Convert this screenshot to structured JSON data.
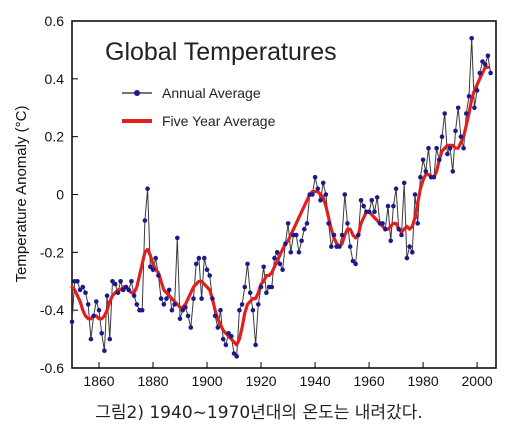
{
  "chart_data": {
    "type": "line",
    "title": "Global Temperatures",
    "ylabel": "Temperature Anomaly (°C)",
    "xlabel": "",
    "xlim": [
      1850,
      2007
    ],
    "ylim": [
      -0.6,
      0.6
    ],
    "x_ticks": [
      1860,
      1880,
      1900,
      1920,
      1940,
      1960,
      1980,
      2000
    ],
    "y_ticks": [
      "0.6",
      "0.4",
      "0.2",
      "0",
      "-0.2",
      "-0.4",
      "-0.6"
    ],
    "legend_position": "top-left",
    "grid": false,
    "series": [
      {
        "name": "Annual Average",
        "color": "#1a1a8c",
        "x_start": 1850,
        "values": [
          -0.44,
          -0.3,
          -0.3,
          -0.33,
          -0.32,
          -0.34,
          -0.38,
          -0.5,
          -0.42,
          -0.37,
          -0.4,
          -0.48,
          -0.54,
          -0.35,
          -0.5,
          -0.3,
          -0.31,
          -0.34,
          -0.3,
          -0.33,
          -0.32,
          -0.33,
          -0.3,
          -0.35,
          -0.38,
          -0.4,
          -0.4,
          -0.09,
          0.02,
          -0.25,
          -0.26,
          -0.22,
          -0.28,
          -0.36,
          -0.38,
          -0.36,
          -0.33,
          -0.4,
          -0.38,
          -0.15,
          -0.43,
          -0.4,
          -0.39,
          -0.42,
          -0.46,
          -0.36,
          -0.24,
          -0.22,
          -0.36,
          -0.22,
          -0.26,
          -0.28,
          -0.36,
          -0.42,
          -0.46,
          -0.4,
          -0.5,
          -0.52,
          -0.48,
          -0.49,
          -0.55,
          -0.56,
          -0.4,
          -0.38,
          -0.32,
          -0.24,
          -0.34,
          -0.4,
          -0.52,
          -0.38,
          -0.32,
          -0.25,
          -0.34,
          -0.32,
          -0.32,
          -0.22,
          -0.2,
          -0.24,
          -0.26,
          -0.17,
          -0.1,
          -0.2,
          -0.14,
          -0.14,
          -0.2,
          -0.16,
          -0.12,
          -0.1,
          0.0,
          0.0,
          0.06,
          0.02,
          -0.02,
          0.04,
          0.0,
          -0.1,
          -0.18,
          -0.14,
          -0.18,
          -0.18,
          -0.14,
          0.0,
          -0.1,
          -0.18,
          -0.23,
          -0.24,
          -0.14,
          -0.02,
          -0.04,
          -0.06,
          -0.06,
          -0.02,
          -0.06,
          -0.01,
          -0.1,
          -0.1,
          -0.12,
          -0.04,
          -0.16,
          -0.04,
          0.02,
          -0.12,
          -0.14,
          0.04,
          -0.22,
          -0.18,
          -0.2,
          0.0,
          -0.1,
          0.06,
          0.12,
          0.08,
          0.16,
          0.06,
          0.06,
          0.16,
          0.12,
          0.2,
          0.28,
          0.14,
          0.16,
          0.08,
          0.22,
          0.3,
          0.2,
          0.16,
          0.28,
          0.34,
          0.54,
          0.3,
          0.36,
          0.42,
          0.46,
          0.45,
          0.48,
          0.42
        ]
      },
      {
        "name": "Five Year Average",
        "color": "#e0201f",
        "x_start": 1850,
        "values": [
          -0.32,
          -0.33,
          -0.35,
          -0.37,
          -0.4,
          -0.42,
          -0.43,
          -0.43,
          -0.42,
          -0.42,
          -0.43,
          -0.43,
          -0.42,
          -0.4,
          -0.37,
          -0.35,
          -0.34,
          -0.33,
          -0.33,
          -0.32,
          -0.32,
          -0.33,
          -0.34,
          -0.34,
          -0.32,
          -0.28,
          -0.24,
          -0.2,
          -0.19,
          -0.21,
          -0.24,
          -0.26,
          -0.27,
          -0.3,
          -0.33,
          -0.34,
          -0.35,
          -0.36,
          -0.37,
          -0.38,
          -0.39,
          -0.39,
          -0.38,
          -0.36,
          -0.34,
          -0.32,
          -0.31,
          -0.3,
          -0.3,
          -0.31,
          -0.32,
          -0.33,
          -0.36,
          -0.4,
          -0.43,
          -0.45,
          -0.47,
          -0.48,
          -0.49,
          -0.5,
          -0.51,
          -0.52,
          -0.5,
          -0.46,
          -0.41,
          -0.38,
          -0.37,
          -0.36,
          -0.36,
          -0.34,
          -0.31,
          -0.3,
          -0.28,
          -0.28,
          -0.27,
          -0.25,
          -0.23,
          -0.21,
          -0.19,
          -0.17,
          -0.16,
          -0.14,
          -0.12,
          -0.1,
          -0.08,
          -0.06,
          -0.04,
          -0.02,
          0.0,
          0.01,
          0.01,
          0.01,
          0.0,
          -0.01,
          -0.04,
          -0.08,
          -0.12,
          -0.15,
          -0.17,
          -0.18,
          -0.17,
          -0.14,
          -0.12,
          -0.12,
          -0.14,
          -0.15,
          -0.14,
          -0.1,
          -0.08,
          -0.06,
          -0.06,
          -0.07,
          -0.08,
          -0.09,
          -0.1,
          -0.11,
          -0.12,
          -0.12,
          -0.11,
          -0.1,
          -0.1,
          -0.12,
          -0.13,
          -0.12,
          -0.11,
          -0.12,
          -0.11,
          -0.08,
          -0.03,
          0.02,
          0.05,
          0.07,
          0.07,
          0.06,
          0.06,
          0.08,
          0.12,
          0.15,
          0.16,
          0.17,
          0.17,
          0.17,
          0.16,
          0.16,
          0.18,
          0.2,
          0.24,
          0.28,
          0.33,
          0.36,
          0.38,
          0.4,
          0.42,
          0.44,
          0.44
        ]
      }
    ]
  },
  "caption": "그림2) 1940~1970년대의 온도는 내려갔다."
}
